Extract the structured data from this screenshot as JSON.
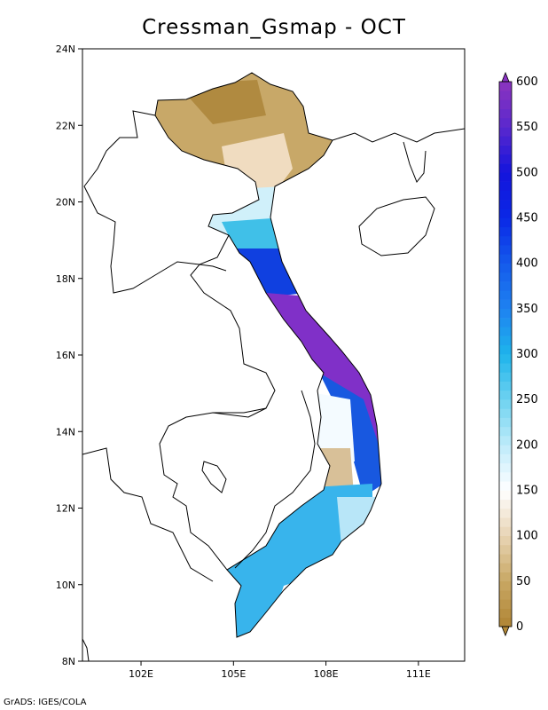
{
  "map": {
    "title": "Cressman_Gsmap - OCT",
    "lat_ticks": [
      "8N",
      "10N",
      "12N",
      "14N",
      "16N",
      "18N",
      "20N",
      "22N",
      "24N"
    ],
    "lon_ticks": [
      "102E",
      "105E",
      "108E",
      "111E"
    ],
    "extent": {
      "lon": [
        100.1,
        112.5
      ],
      "lat": [
        8,
        24
      ]
    }
  },
  "colorbar": {
    "labels": [
      "0",
      "50",
      "100",
      "150",
      "200",
      "250",
      "300",
      "350",
      "400",
      "450",
      "500",
      "550",
      "600"
    ],
    "range": [
      0,
      600
    ],
    "step": 10
  },
  "footer": "GrADS: IGES/COLA"
}
